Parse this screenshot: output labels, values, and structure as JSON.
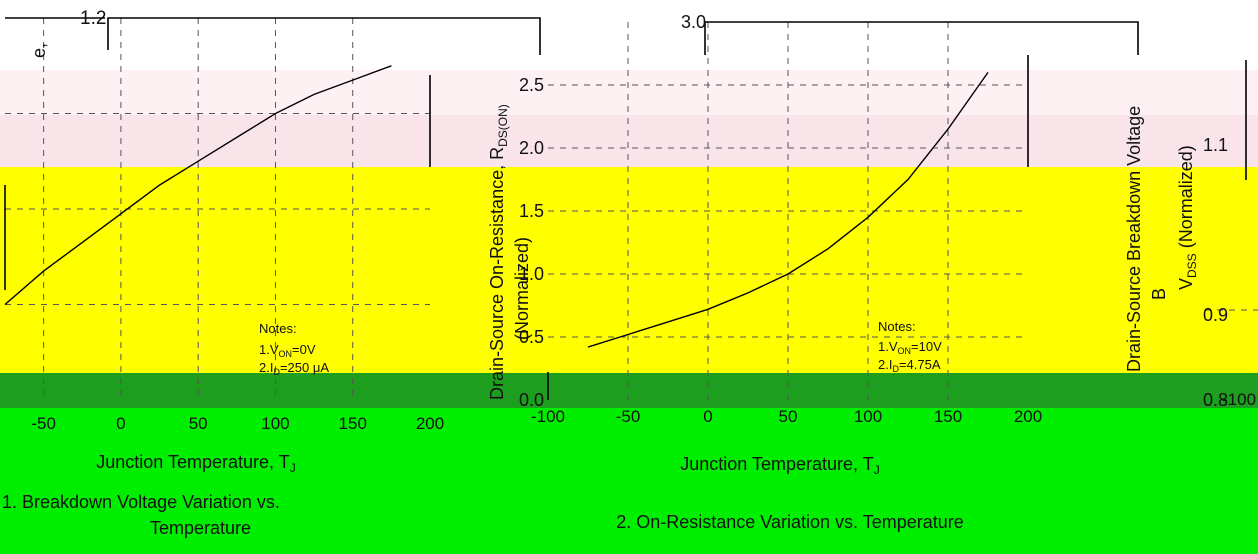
{
  "colors": {
    "band_pink_light": "#fdf1f4",
    "band_pink": "#f9e4ea",
    "band_yellow": "#ffff00",
    "band_dark_green": "#1e9e1e",
    "band_bright_green": "#00ee00",
    "curve": "#000000",
    "grid": "#555555"
  },
  "chart_data": [
    {
      "type": "line",
      "title": "1. Breakdown Voltage Variation vs. Temperature",
      "xlabel": "Junction Temperature, T",
      "xlabel_sub": "J",
      "ylabel_fragment": "e,",
      "ylim": [
        0.8,
        1.2
      ],
      "xlim": [
        -75,
        200
      ],
      "grid": true,
      "y_ticks_visible": [
        "1.2"
      ],
      "x_ticks": [
        "-50",
        "0",
        "50",
        "100",
        "150",
        "200"
      ],
      "notes": [
        "Notes:",
        "1.V",
        "ON",
        "=0V",
        "2.I",
        "D",
        "=250 μA"
      ],
      "series": [
        {
          "x": [
            -75,
            -50,
            -25,
            0,
            25,
            50,
            75,
            100,
            125,
            150,
            175
          ],
          "y": [
            0.9,
            0.935,
            0.965,
            0.995,
            1.025,
            1.05,
            1.075,
            1.1,
            1.12,
            1.135,
            1.15
          ]
        }
      ]
    },
    {
      "type": "line",
      "title": "2. On-Resistance Variation vs. Temperature",
      "xlabel": "Junction Temperature, T",
      "xlabel_sub": "J",
      "ylabel": "Drain-Source On-Resistance, R",
      "ylabel_sub": "DS(ON)",
      "ylabel2": "(Normalized)",
      "ylim": [
        0.0,
        3.0
      ],
      "xlim": [
        -100,
        200
      ],
      "grid": true,
      "y_ticks": [
        "0.0",
        "0.5",
        "1.0",
        "1.5",
        "2.0",
        "2.5",
        "3.0"
      ],
      "x_ticks": [
        "-100",
        "-50",
        "0",
        "50",
        "100",
        "150",
        "200"
      ],
      "notes": [
        "Notes:",
        "1.V",
        "ON",
        "=10V",
        "2.I",
        "D",
        "=4.75A"
      ],
      "series": [
        {
          "x": [
            -75,
            -50,
            -25,
            0,
            25,
            50,
            75,
            100,
            125,
            150,
            175
          ],
          "y": [
            0.42,
            0.52,
            0.62,
            0.72,
            0.85,
            1.0,
            1.2,
            1.45,
            1.75,
            2.15,
            2.6
          ]
        }
      ]
    },
    {
      "type": "line",
      "title": "",
      "ylabel": "Drain-Source Breakdown Voltage",
      "ylabel_sub_prefix": "B",
      "ylabel2": "V",
      "ylabel2_sub": "DSS",
      "ylabel2_suffix": " (Normalized)",
      "ylim": [
        0.8,
        1.2
      ],
      "grid": true,
      "y_ticks": [
        "0.8",
        "0.9",
        "1.1"
      ],
      "x_ticks": [
        "-100"
      ],
      "series": []
    }
  ]
}
